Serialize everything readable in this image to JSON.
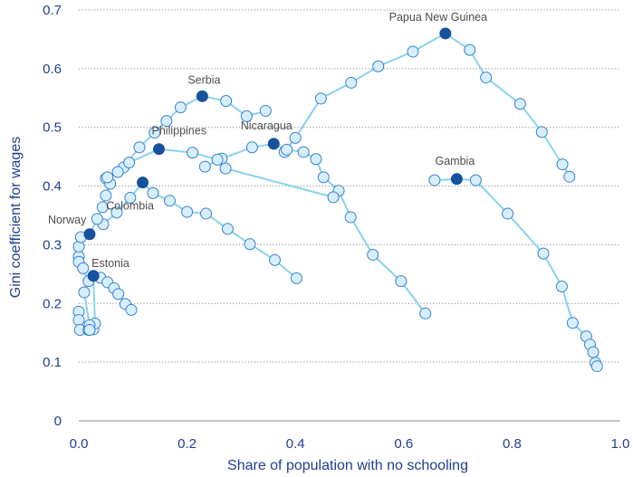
{
  "chart_data": {
    "type": "scatter",
    "title": "",
    "xlabel": "Share of population with no schooling",
    "ylabel": "Gini coefficient for wages",
    "xlim": [
      0,
      1
    ],
    "ylim": [
      0,
      0.7
    ],
    "xticks": [
      "0.0",
      "0.2",
      "0.4",
      "0.6",
      "0.8",
      "1.0"
    ],
    "yticks": [
      "0",
      "0.1",
      "0.2",
      "0.3",
      "0.4",
      "0.5",
      "0.6",
      "0.7"
    ],
    "grid": "horizontal-dotted",
    "legend": "none",
    "colors": {
      "line": "#88d2ee",
      "point_fill": "#d6efff",
      "point_edge": "#3a7fc8",
      "highlight": "#17529e",
      "axis_text": "#1f3f8f",
      "label_text": "#4d4d4d"
    },
    "series": [
      {
        "name": "Papua New Guinea",
        "highlight": [
          0.677,
          0.66
        ],
        "points": [
          [
            0.38,
            0.458
          ],
          [
            0.4,
            0.482
          ],
          [
            0.447,
            0.549
          ],
          [
            0.503,
            0.576
          ],
          [
            0.553,
            0.604
          ],
          [
            0.617,
            0.629
          ],
          [
            0.677,
            0.66
          ],
          [
            0.722,
            0.632
          ],
          [
            0.752,
            0.585
          ],
          [
            0.815,
            0.54
          ],
          [
            0.855,
            0.492
          ],
          [
            0.893,
            0.437
          ],
          [
            0.906,
            0.416
          ]
        ]
      },
      {
        "name": "Serbia",
        "highlight": [
          0.228,
          0.553
        ],
        "points": [
          [
            0.05,
            0.413
          ],
          [
            0.083,
            0.432
          ],
          [
            0.112,
            0.466
          ],
          [
            0.14,
            0.491
          ],
          [
            0.162,
            0.511
          ],
          [
            0.188,
            0.534
          ],
          [
            0.228,
            0.553
          ],
          [
            0.272,
            0.545
          ],
          [
            0.31,
            0.519
          ],
          [
            0.345,
            0.528
          ]
        ]
      },
      {
        "name": "Nicaragua",
        "highlight": [
          0.36,
          0.472
        ],
        "points": [
          [
            0.233,
            0.433
          ],
          [
            0.264,
            0.447
          ],
          [
            0.32,
            0.466
          ],
          [
            0.36,
            0.472
          ],
          [
            0.384,
            0.462
          ],
          [
            0.415,
            0.458
          ],
          [
            0.438,
            0.446
          ],
          [
            0.452,
            0.415
          ],
          [
            0.48,
            0.392
          ],
          [
            0.502,
            0.347
          ],
          [
            0.543,
            0.283
          ],
          [
            0.595,
            0.238
          ],
          [
            0.64,
            0.183
          ]
        ]
      },
      {
        "name": "Philippines",
        "highlight": [
          0.148,
          0.463
        ],
        "points": [
          [
            0.093,
            0.44
          ],
          [
            0.148,
            0.463
          ],
          [
            0.21,
            0.457
          ],
          [
            0.256,
            0.445
          ],
          [
            0.271,
            0.43
          ],
          [
            0.47,
            0.381
          ]
        ]
      },
      {
        "name": "Gambia",
        "highlight": [
          0.698,
          0.412
        ],
        "points": [
          [
            0.657,
            0.41
          ],
          [
            0.698,
            0.412
          ],
          [
            0.733,
            0.41
          ],
          [
            0.792,
            0.353
          ],
          [
            0.858,
            0.285
          ],
          [
            0.892,
            0.229
          ],
          [
            0.912,
            0.167
          ],
          [
            0.937,
            0.144
          ],
          [
            0.944,
            0.13
          ],
          [
            0.95,
            0.117
          ],
          [
            0.954,
            0.099
          ],
          [
            0.957,
            0.093
          ]
        ]
      },
      {
        "name": "Colombia",
        "highlight": [
          0.118,
          0.406
        ],
        "points": [
          [
            0.045,
            0.335
          ],
          [
            0.07,
            0.355
          ],
          [
            0.095,
            0.38
          ],
          [
            0.118,
            0.406
          ],
          [
            0.137,
            0.388
          ],
          [
            0.168,
            0.375
          ],
          [
            0.2,
            0.356
          ],
          [
            0.235,
            0.353
          ],
          [
            0.275,
            0.327
          ],
          [
            0.316,
            0.301
          ],
          [
            0.362,
            0.274
          ],
          [
            0.402,
            0.243
          ]
        ]
      },
      {
        "name": "Norway",
        "highlight": [
          0.02,
          0.318
        ],
        "points": [
          [
            0.0,
            0.28
          ],
          [
            0.0,
            0.297
          ],
          [
            0.004,
            0.313
          ],
          [
            0.02,
            0.318
          ],
          [
            0.034,
            0.344
          ],
          [
            0.044,
            0.364
          ],
          [
            0.05,
            0.384
          ],
          [
            0.058,
            0.404
          ],
          [
            0.053,
            0.415
          ],
          [
            0.072,
            0.424
          ]
        ]
      },
      {
        "name": "Estonia",
        "highlight": [
          0.027,
          0.247
        ],
        "points": [
          [
            0.0,
            0.186
          ],
          [
            0.0,
            0.172
          ],
          [
            0.002,
            0.155
          ],
          [
            0.018,
            0.155
          ],
          [
            0.027,
            0.156
          ],
          [
            0.03,
            0.166
          ],
          [
            0.027,
            0.247
          ],
          [
            0.04,
            0.244
          ],
          [
            0.053,
            0.236
          ],
          [
            0.065,
            0.226
          ],
          [
            0.073,
            0.216
          ],
          [
            0.086,
            0.199
          ],
          [
            0.097,
            0.189
          ]
        ]
      },
      {
        "name": "",
        "highlight": null,
        "points": [
          [
            0.0,
            0.271
          ],
          [
            0.008,
            0.26
          ],
          [
            0.018,
            0.238
          ],
          [
            0.01,
            0.219
          ],
          [
            0.02,
            0.163
          ],
          [
            0.02,
            0.155
          ]
        ]
      }
    ]
  }
}
